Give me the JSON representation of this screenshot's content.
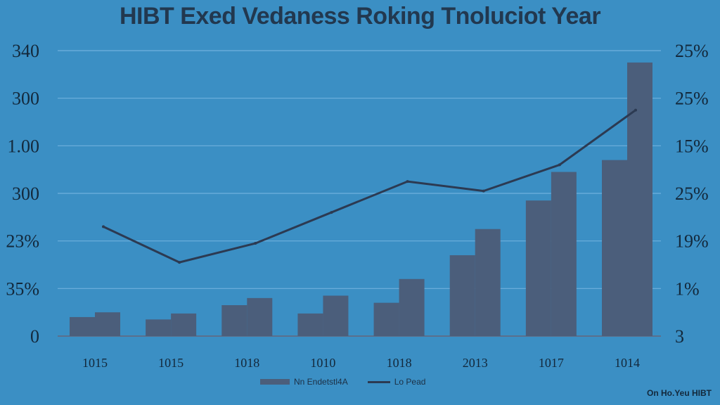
{
  "chart_data": {
    "type": "bar",
    "title": "HIBT Exed Vedaness Roking Tnoluciot Year",
    "categories": [
      "1015",
      "1015",
      "1018",
      "1010",
      "1018",
      "2013",
      "1017",
      "1014"
    ],
    "y_tick_labels_left": [
      "340",
      "300",
      "1.00",
      "300",
      "23%",
      "35%",
      "0"
    ],
    "y_tick_labels_right": [
      "25%",
      "25%",
      "15%",
      "25%",
      "19%",
      "1%",
      "3"
    ],
    "grid": true,
    "series": [
      {
        "name": "Nn Endetstl4A",
        "type": "bar",
        "values": [
          [
            8,
            10
          ],
          [
            7,
            9.5
          ],
          [
            13,
            16
          ],
          [
            9.5,
            17
          ],
          [
            14,
            24
          ],
          [
            34,
            45
          ],
          [
            57,
            69
          ],
          [
            74,
            115
          ]
        ]
      },
      {
        "name": "Lo Pead",
        "type": "line",
        "values": [
          46,
          31,
          39,
          52,
          65,
          61,
          72,
          95
        ]
      }
    ],
    "ylim": [
      0,
      120
    ]
  },
  "colors": {
    "background": "#3b8fc4",
    "bar": "#4b5e7b",
    "line": "#2c3a52",
    "grid": "#6fb0de"
  },
  "legend": {
    "bar_label": "Nn Endetstl4A",
    "line_label": "Lo Pead"
  },
  "source_note": "On Ho.Yeu HIBT"
}
